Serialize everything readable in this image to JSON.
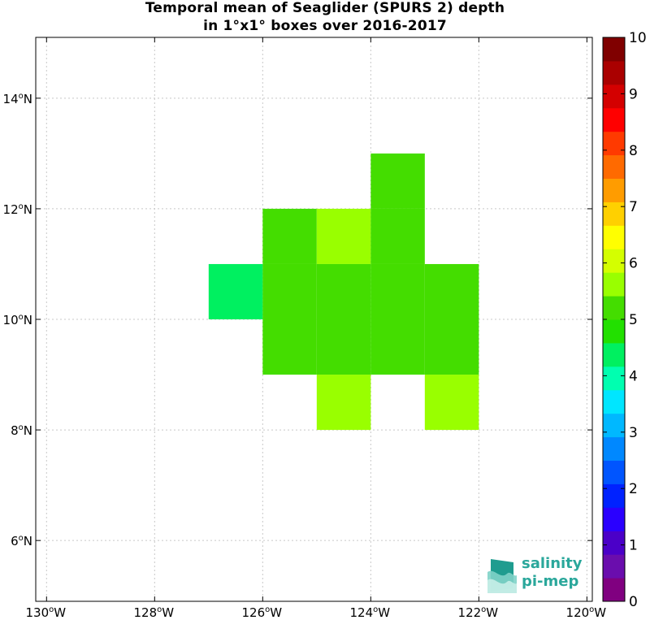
{
  "chart_data": {
    "type": "heatmap",
    "title_line1": "Temporal mean of Seaglider (SPURS 2) depth",
    "title_line2": "in 1°x1° boxes over 2016-2017",
    "x_ticks": [
      {
        "value": -130,
        "deg": "130",
        "hem": "W"
      },
      {
        "value": -128,
        "deg": "128",
        "hem": "W"
      },
      {
        "value": -126,
        "deg": "126",
        "hem": "W"
      },
      {
        "value": -124,
        "deg": "124",
        "hem": "W"
      },
      {
        "value": -122,
        "deg": "122",
        "hem": "W"
      },
      {
        "value": -120,
        "deg": "120",
        "hem": "W"
      }
    ],
    "y_ticks": [
      {
        "value": 6,
        "deg": "6",
        "hem": "N"
      },
      {
        "value": 8,
        "deg": "8",
        "hem": "N"
      },
      {
        "value": 10,
        "deg": "10",
        "hem": "N"
      },
      {
        "value": 12,
        "deg": "12",
        "hem": "N"
      },
      {
        "value": 14,
        "deg": "14",
        "hem": "N"
      }
    ],
    "xlim": [
      -130.2,
      -119.9
    ],
    "ylim": [
      4.9,
      15.1
    ],
    "grid": true,
    "colorbar": {
      "range": [
        0,
        10
      ],
      "ticks": [
        "0",
        "1",
        "2",
        "3",
        "4",
        "5",
        "6",
        "7",
        "8",
        "9",
        "10"
      ],
      "colors": [
        "#800080",
        "#6a0dad",
        "#4b00c8",
        "#2a00ff",
        "#0022ff",
        "#0055ff",
        "#0088ff",
        "#00b8ff",
        "#00e6ff",
        "#00ffb0",
        "#00f060",
        "#22e000",
        "#44dd00",
        "#99ff00",
        "#d4ff00",
        "#ffff00",
        "#ffd000",
        "#ff9c00",
        "#ff6a00",
        "#ff3a00",
        "#ff0000",
        "#d40000",
        "#aa0000",
        "#800000"
      ]
    },
    "cells": [
      {
        "lon": -127,
        "lat": 10,
        "value": 4.2
      },
      {
        "lon": -126,
        "lat": 11,
        "value": 5.0
      },
      {
        "lon": -126,
        "lat": 10,
        "value": 5.0
      },
      {
        "lon": -126,
        "lat": 9,
        "value": 5.0
      },
      {
        "lon": -125,
        "lat": 11,
        "value": 5.8
      },
      {
        "lon": -125,
        "lat": 10,
        "value": 5.0
      },
      {
        "lon": -125,
        "lat": 9,
        "value": 5.0
      },
      {
        "lon": -125,
        "lat": 8,
        "value": 5.8
      },
      {
        "lon": -124,
        "lat": 12,
        "value": 5.0
      },
      {
        "lon": -124,
        "lat": 11,
        "value": 5.0
      },
      {
        "lon": -124,
        "lat": 10,
        "value": 5.0
      },
      {
        "lon": -124,
        "lat": 9,
        "value": 5.0
      },
      {
        "lon": -123,
        "lat": 10,
        "value": 5.0
      },
      {
        "lon": -123,
        "lat": 9,
        "value": 5.0
      },
      {
        "lon": -123,
        "lat": 8,
        "value": 5.8
      }
    ]
  },
  "logo": {
    "line1": "salinity",
    "line2": "pi-mep"
  }
}
